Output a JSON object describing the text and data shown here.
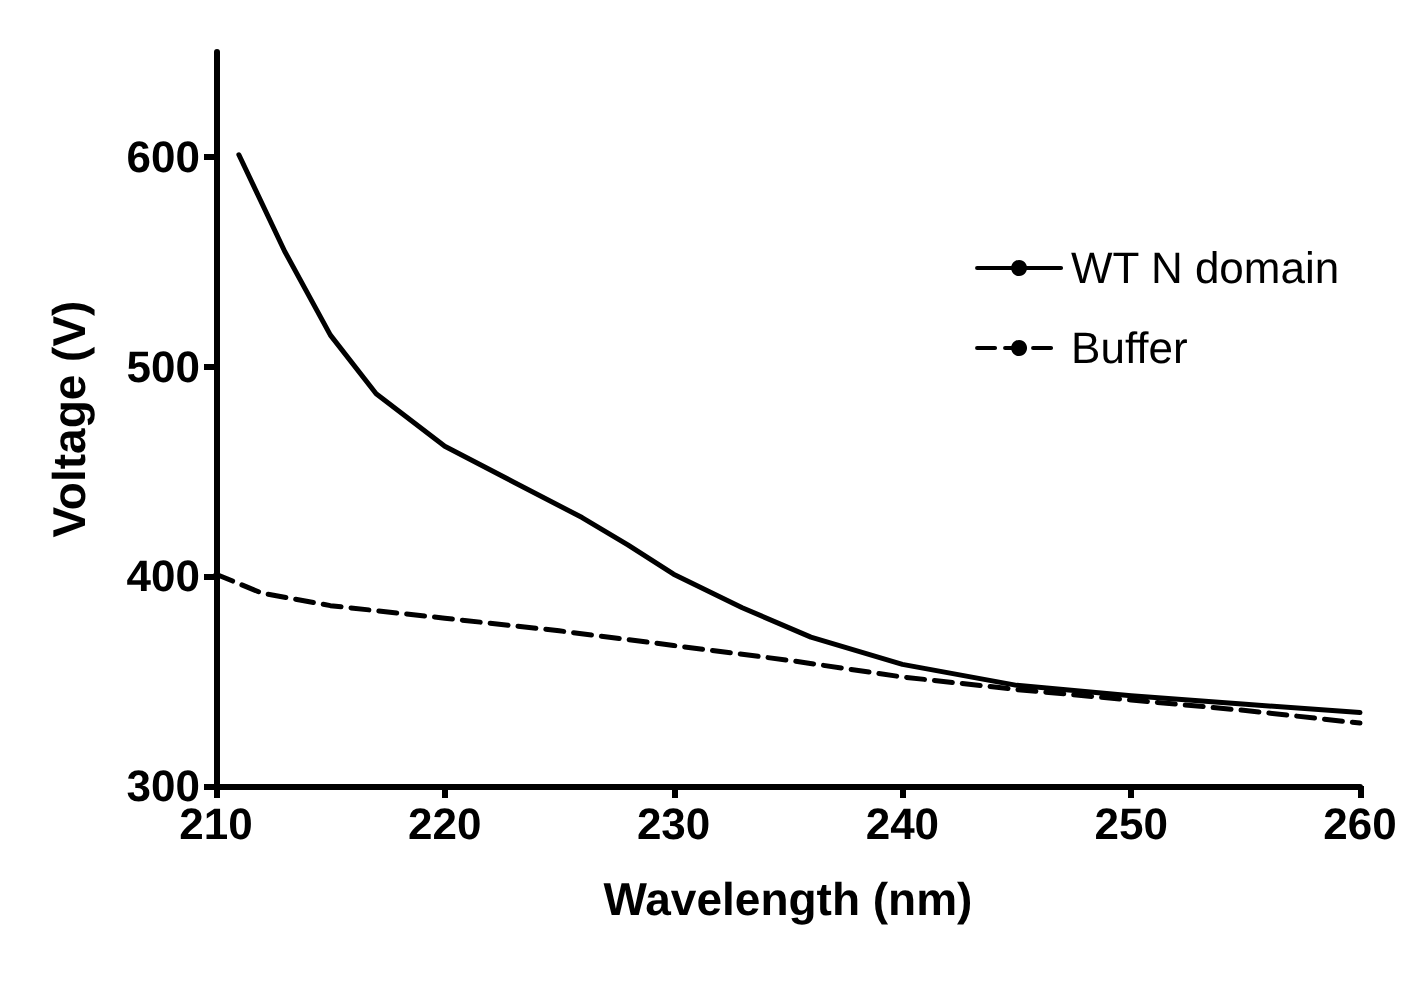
{
  "chart_data": {
    "type": "line",
    "xlabel": "Wavelength (nm)",
    "ylabel": "Voltage (V)",
    "xlim": [
      210,
      260
    ],
    "xticks": [
      210,
      220,
      230,
      240,
      250,
      260
    ],
    "ylim": [
      300,
      650
    ],
    "yticks": [
      300,
      400,
      500,
      600
    ],
    "grid": false,
    "legend": "top right",
    "marker": "none",
    "series": [
      {
        "name": "WT N domain",
        "color": "#000000",
        "line_style": "solid",
        "x": [
          211,
          213,
          215,
          217,
          220,
          223,
          226,
          228,
          230,
          233,
          236,
          240,
          245,
          250,
          255,
          260
        ],
        "values": [
          601,
          555,
          515,
          487,
          462,
          445,
          428,
          415,
          401,
          385,
          371,
          358,
          348,
          343,
          339,
          335
        ]
      },
      {
        "name": "Buffer",
        "color": "#000000",
        "line_style": "dashed",
        "x": [
          210,
          212,
          215,
          220,
          225,
          230,
          235,
          240,
          245,
          250,
          255,
          260
        ],
        "values": [
          401,
          392,
          386,
          380,
          374,
          367,
          360,
          352,
          346,
          341,
          336,
          330
        ]
      }
    ]
  }
}
